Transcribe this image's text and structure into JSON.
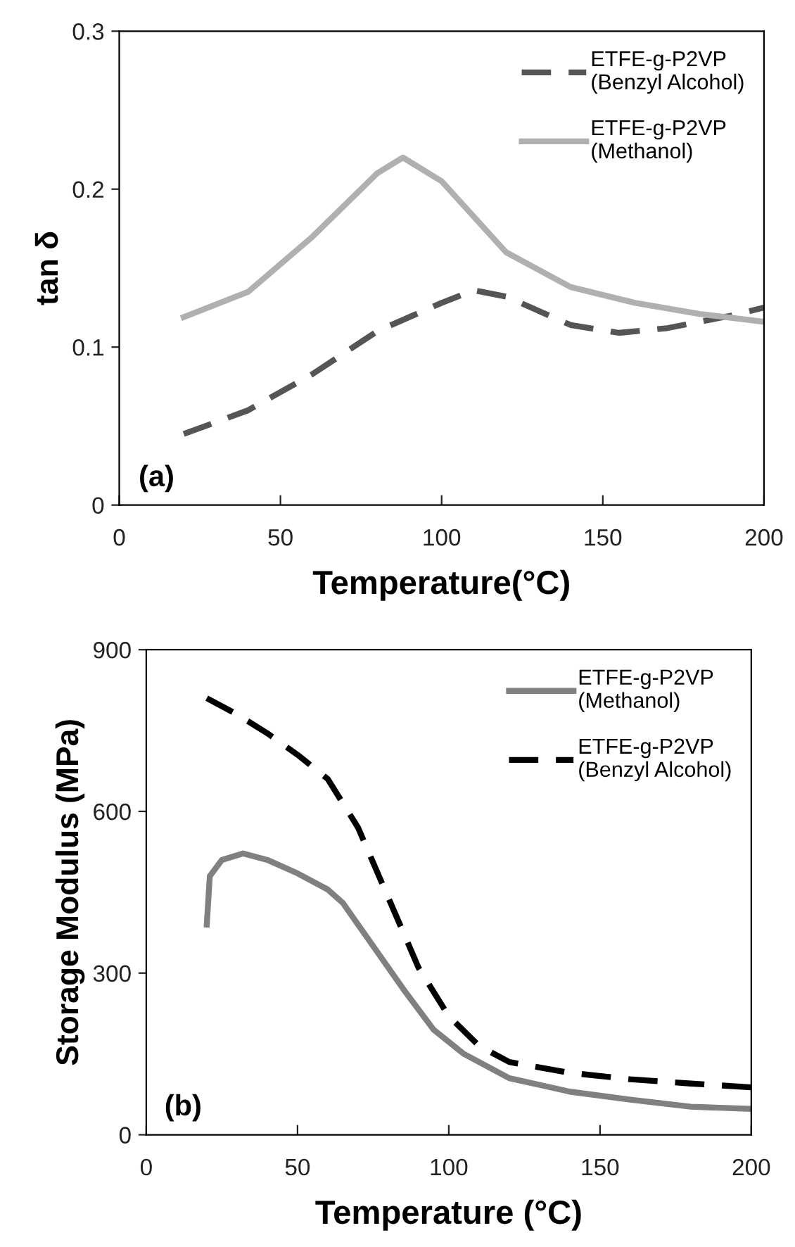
{
  "chart_data": [
    {
      "type": "line",
      "xlabel": "Temperature(°C)",
      "ylabel": "tan δ",
      "annotations": [
        "(a)"
      ],
      "xlim": [
        0,
        200
      ],
      "xticks": [
        0,
        50,
        100,
        150,
        200
      ],
      "ylim": [
        0,
        0.3
      ],
      "yticks": [
        0,
        0.1,
        0.2,
        0.3
      ],
      "grid": false,
      "legend": "top right",
      "marker": "none",
      "series": [
        {
          "name": "ETFE-g-P2VP\n(Benzyl Alcohol)",
          "color": "#555555",
          "line_style": "dashed",
          "x": [
            20,
            40,
            60,
            80,
            100,
            110,
            120,
            140,
            155,
            170,
            190,
            200
          ],
          "values": [
            0.045,
            0.06,
            0.083,
            0.11,
            0.128,
            0.136,
            0.132,
            0.114,
            0.109,
            0.112,
            0.12,
            0.125
          ]
        },
        {
          "name": "ETFE-g-P2VP\n(Methanol)",
          "color": "#b0b0b0",
          "line_style": "solid",
          "x": [
            20,
            40,
            60,
            80,
            88,
            100,
            120,
            140,
            160,
            180,
            200
          ],
          "values": [
            0.119,
            0.135,
            0.17,
            0.21,
            0.22,
            0.205,
            0.16,
            0.138,
            0.128,
            0.121,
            0.116
          ]
        }
      ]
    },
    {
      "type": "line",
      "xlabel": "Temperature (°C)",
      "ylabel": "Storage Modulus (MPa)",
      "annotations": [
        "(b)"
      ],
      "xlim": [
        0,
        200
      ],
      "xticks": [
        0,
        50,
        100,
        150,
        200
      ],
      "ylim": [
        0,
        900
      ],
      "yticks": [
        0,
        300,
        600,
        900
      ],
      "grid": false,
      "legend": "top right",
      "marker": "none",
      "series": [
        {
          "name": "ETFE-g-P2VP\n(Methanol)",
          "color": "#808080",
          "line_style": "solid",
          "x": [
            20,
            21,
            25,
            32,
            40,
            50,
            60,
            65,
            75,
            85,
            95,
            105,
            120,
            140,
            160,
            180,
            200
          ],
          "values": [
            390,
            480,
            510,
            522,
            510,
            485,
            455,
            430,
            350,
            270,
            195,
            150,
            105,
            80,
            65,
            52,
            48
          ]
        },
        {
          "name": "ETFE-g-P2VP\n(Benzyl Alcohol)",
          "color": "#000000",
          "line_style": "dashed",
          "x": [
            20,
            30,
            40,
            50,
            60,
            70,
            80,
            90,
            100,
            110,
            120,
            140,
            160,
            180,
            200
          ],
          "values": [
            810,
            780,
            745,
            705,
            660,
            570,
            440,
            310,
            220,
            165,
            135,
            115,
            103,
            95,
            88
          ]
        }
      ]
    }
  ]
}
